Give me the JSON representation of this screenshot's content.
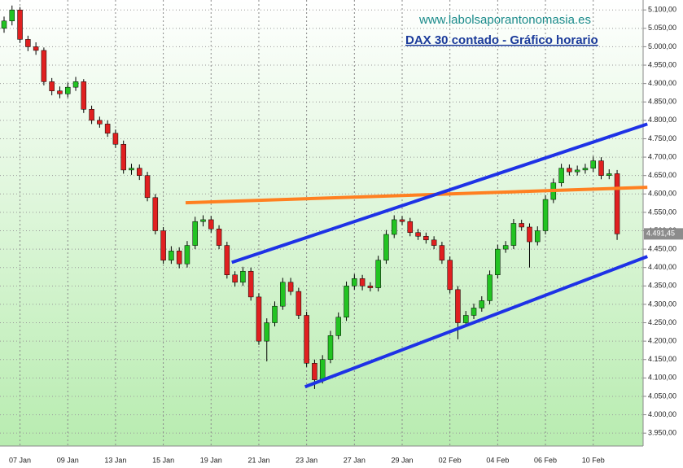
{
  "chart_data": {
    "type": "candlestick",
    "title": "DAX 30 contado - Gráfico horario",
    "source": "www.labolsaporantonomasia.es",
    "categories": [
      null,
      null,
      "07 Jan",
      null,
      null,
      null,
      null,
      null,
      "09 Jan",
      null,
      null,
      null,
      null,
      null,
      "13 Jan",
      null,
      null,
      null,
      null,
      null,
      "15 Jan",
      null,
      null,
      null,
      null,
      null,
      "19 Jan",
      null,
      null,
      null,
      null,
      null,
      "21 Jan",
      null,
      null,
      null,
      null,
      null,
      "23 Jan",
      null,
      null,
      null,
      null,
      null,
      "27 Jan",
      null,
      null,
      null,
      null,
      null,
      "29 Jan",
      null,
      null,
      null,
      null,
      null,
      "02 Feb",
      null,
      null,
      null,
      null,
      null,
      "04 Feb",
      null,
      null,
      null,
      null,
      null,
      "06 Feb",
      null,
      null,
      null,
      null,
      null,
      "10 Feb",
      null,
      null,
      null
    ],
    "open": [
      5050,
      5070,
      5100,
      5020,
      5000,
      4990,
      4905,
      4880,
      4872,
      4890,
      4905,
      4830,
      4800,
      4790,
      4765,
      4735,
      4665,
      4670,
      4650,
      4590,
      4500,
      4420,
      4445,
      4410,
      4460,
      4525,
      4530,
      4505,
      4460,
      4380,
      4360,
      4390,
      4320,
      4200,
      4250,
      4295,
      4360,
      4335,
      4270,
      4140,
      4095,
      4150,
      4215,
      4265,
      4350,
      4370,
      4350,
      4345,
      4420,
      4490,
      4530,
      4525,
      4495,
      4485,
      4475,
      4460,
      4420,
      4340,
      4250,
      4270,
      4290,
      4310,
      4380,
      4450,
      4460,
      4520,
      4510,
      4470,
      4500,
      4585,
      4630,
      4670,
      4660,
      4665,
      4670,
      4690,
      4650,
      4655
    ],
    "high": [
      5082,
      5112,
      5108,
      5030,
      5012,
      4998,
      4915,
      4892,
      4902,
      4918,
      4912,
      4840,
      4810,
      4800,
      4775,
      4745,
      4682,
      4680,
      4660,
      4600,
      4510,
      4458,
      4455,
      4472,
      4538,
      4542,
      4540,
      4515,
      4470,
      4390,
      4402,
      4400,
      4330,
      4262,
      4308,
      4372,
      4372,
      4345,
      4280,
      4150,
      4162,
      4228,
      4278,
      4362,
      4382,
      4380,
      4360,
      4432,
      4502,
      4542,
      4540,
      4535,
      4505,
      4495,
      4485,
      4470,
      4430,
      4350,
      4282,
      4302,
      4322,
      4392,
      4462,
      4472,
      4532,
      4530,
      4520,
      4512,
      4597,
      4642,
      4682,
      4680,
      4677,
      4682,
      4702,
      4700,
      4667,
      4665
    ],
    "low": [
      5038,
      5058,
      5010,
      4988,
      4978,
      4895,
      4868,
      4860,
      4862,
      4880,
      4820,
      4790,
      4780,
      4755,
      4725,
      4655,
      4652,
      4638,
      4580,
      4490,
      4410,
      4410,
      4398,
      4400,
      4450,
      4512,
      4495,
      4450,
      4370,
      4348,
      4350,
      4310,
      4190,
      4145,
      4240,
      4285,
      4325,
      4260,
      4130,
      4070,
      4085,
      4140,
      4205,
      4255,
      4340,
      4338,
      4335,
      4335,
      4410,
      4480,
      4515,
      4485,
      4475,
      4465,
      4450,
      4410,
      4330,
      4205,
      4240,
      4260,
      4280,
      4300,
      4370,
      4440,
      4450,
      4500,
      4400,
      4460,
      4490,
      4575,
      4620,
      4650,
      4650,
      4655,
      4660,
      4640,
      4640,
      4475
    ],
    "close": [
      5070,
      5100,
      5020,
      5000,
      4990,
      4905,
      4880,
      4872,
      4890,
      4905,
      4830,
      4800,
      4790,
      4765,
      4735,
      4665,
      4670,
      4650,
      4590,
      4500,
      4420,
      4445,
      4410,
      4460,
      4525,
      4530,
      4505,
      4460,
      4380,
      4360,
      4390,
      4320,
      4200,
      4250,
      4295,
      4360,
      4335,
      4270,
      4140,
      4095,
      4150,
      4215,
      4265,
      4350,
      4370,
      4350,
      4345,
      4420,
      4490,
      4530,
      4525,
      4495,
      4485,
      4475,
      4460,
      4420,
      4340,
      4250,
      4270,
      4290,
      4310,
      4380,
      4450,
      4460,
      4520,
      4510,
      4470,
      4500,
      4585,
      4630,
      4670,
      4660,
      4665,
      4670,
      4690,
      4650,
      4655,
      4491.45
    ],
    "up_color": "#22c322",
    "down_color": "#e02020",
    "last_price": {
      "value": 4491.45,
      "label": "4.491,45"
    },
    "trendlines": [
      {
        "color": "#ff8020",
        "x": [
          22.8,
          80.8
        ],
        "y": [
          4576,
          4618
        ]
      },
      {
        "color": "#1e32e6",
        "x": [
          28.6,
          80.8
        ],
        "y": [
          4414,
          4790
        ]
      },
      {
        "color": "#1e32e6",
        "x": [
          37.8,
          80.8
        ],
        "y": [
          4076,
          4430
        ]
      }
    ],
    "ylim": [
      3915,
      5127
    ],
    "yticks": [
      {
        "value": 3950,
        "label": "3.950,00"
      },
      {
        "value": 4000,
        "label": "4.000,00"
      },
      {
        "value": 4050,
        "label": "4.050,00"
      },
      {
        "value": 4100,
        "label": "4.100,00"
      },
      {
        "value": 4150,
        "label": "4.150,00"
      },
      {
        "value": 4200,
        "label": "4.200,00"
      },
      {
        "value": 4250,
        "label": "4.250,00"
      },
      {
        "value": 4300,
        "label": "4.300,00"
      },
      {
        "value": 4350,
        "label": "4.350,00"
      },
      {
        "value": 4400,
        "label": "4.400,00"
      },
      {
        "value": 4450,
        "label": "4.450,00"
      },
      {
        "value": 4500,
        "label": "4.500,00"
      },
      {
        "value": 4550,
        "label": "4.550,00"
      },
      {
        "value": 4600,
        "label": "4.600,00"
      },
      {
        "value": 4650,
        "label": "4.650,00"
      },
      {
        "value": 4700,
        "label": "4.700,00"
      },
      {
        "value": 4750,
        "label": "4.750,00"
      },
      {
        "value": 4800,
        "label": "4.800,00"
      },
      {
        "value": 4850,
        "label": "4.850,00"
      },
      {
        "value": 4900,
        "label": "4.900,00"
      },
      {
        "value": 4950,
        "label": "4.950,00"
      },
      {
        "value": 5000,
        "label": "5.000,00"
      },
      {
        "value": 5050,
        "label": "5.050,00"
      },
      {
        "value": 5100,
        "label": "5.100,00"
      }
    ],
    "grid": true
  }
}
